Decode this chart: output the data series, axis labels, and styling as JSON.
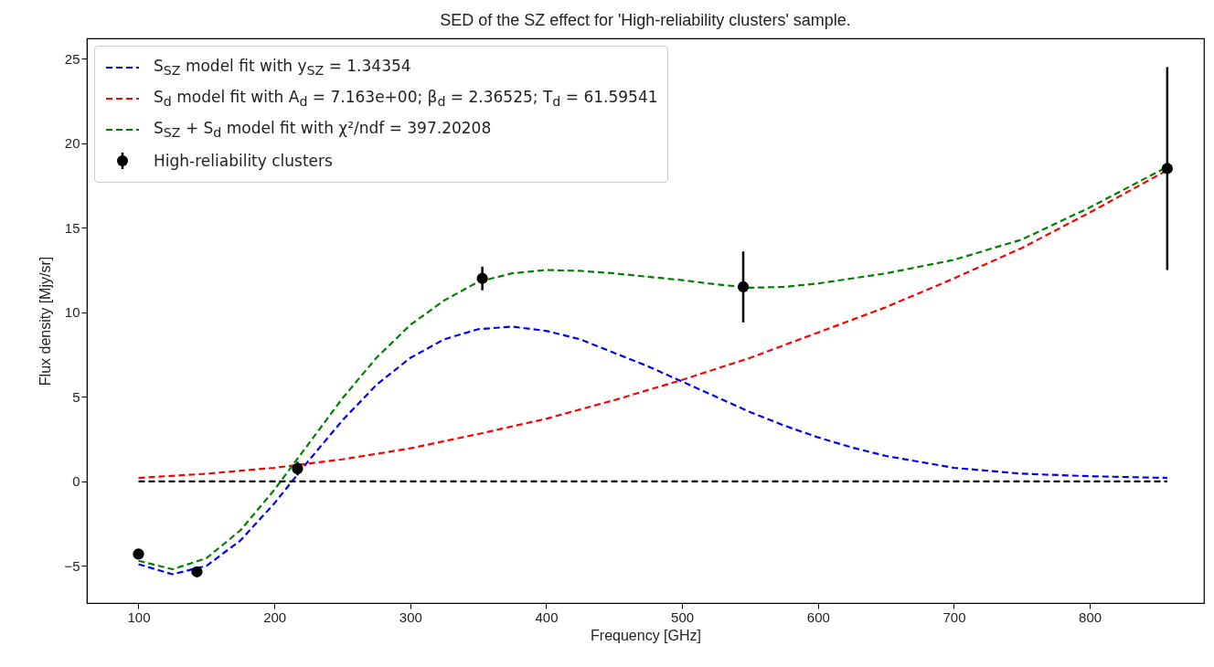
{
  "chart_data": {
    "type": "line",
    "title": "SED of the SZ effect for 'High-reliability clusters' sample.",
    "xlabel": "Frequency [GHz]",
    "ylabel": "Flux density [Mjy/sr]",
    "xlim": [
      62,
      884
    ],
    "ylim": [
      -7.2,
      26.2
    ],
    "xticks": [
      100,
      200,
      300,
      400,
      500,
      600,
      700,
      800
    ],
    "yticks": [
      -5,
      0,
      5,
      10,
      15,
      20,
      25
    ],
    "legend": "top left",
    "series": [
      {
        "name": "S$_{SZ}$ model fit with y$_{SZ}$ = 1.34354",
        "color": "#0000ff",
        "line_style": "dashed",
        "marker": "none",
        "x": [
          100,
          125,
          150,
          175,
          200,
          225,
          250,
          275,
          300,
          325,
          350,
          375,
          400,
          425,
          450,
          475,
          500,
          525,
          550,
          575,
          600,
          625,
          650,
          700,
          750,
          800,
          857
        ],
        "values": [
          -4.9,
          -5.5,
          -5.0,
          -3.5,
          -1.3,
          1.2,
          3.6,
          5.7,
          7.3,
          8.4,
          9.0,
          9.15,
          8.9,
          8.4,
          7.6,
          6.8,
          5.9,
          5.0,
          4.1,
          3.3,
          2.6,
          2.0,
          1.5,
          0.8,
          0.45,
          0.3,
          0.2
        ]
      },
      {
        "name": "S$_{d}$ model fit with A$_{d}$ = 7.163e+00; β$_{d}$ = 2.36525; T$_{d}$ = 61.59541",
        "color": "#ff0000",
        "line_style": "dashed",
        "marker": "none",
        "x": [
          100,
          150,
          200,
          250,
          300,
          350,
          400,
          450,
          500,
          550,
          600,
          650,
          700,
          750,
          800,
          857
        ],
        "values": [
          0.2,
          0.45,
          0.8,
          1.3,
          1.95,
          2.8,
          3.7,
          4.8,
          6.0,
          7.3,
          8.8,
          10.3,
          12.0,
          13.8,
          15.9,
          18.4
        ]
      },
      {
        "name": "S$_{SZ}$ + S$_{d}$ model fit with χ²/ndf = 397.20208",
        "color": "#008000",
        "line_style": "dashed",
        "marker": "none",
        "x": [
          100,
          125,
          150,
          175,
          200,
          225,
          250,
          275,
          300,
          325,
          350,
          375,
          400,
          425,
          450,
          475,
          500,
          525,
          550,
          575,
          600,
          625,
          650,
          700,
          750,
          800,
          857
        ],
        "values": [
          -4.7,
          -5.2,
          -4.55,
          -2.9,
          -0.5,
          2.2,
          4.9,
          7.3,
          9.25,
          10.7,
          11.8,
          12.3,
          12.5,
          12.45,
          12.3,
          12.1,
          11.9,
          11.65,
          11.45,
          11.5,
          11.7,
          12.0,
          12.3,
          13.1,
          14.3,
          16.2,
          18.6
        ]
      },
      {
        "color": "#000000",
        "line_style": "dashed",
        "marker": "none",
        "x": [
          100,
          857
        ],
        "values": [
          0,
          0
        ]
      },
      {
        "name": "High-reliability clusters",
        "type": "scatter",
        "color": "#000000",
        "marker": "circle",
        "x": [
          100,
          143,
          217,
          353,
          545,
          857
        ],
        "values": [
          -4.3,
          -5.35,
          0.75,
          12.0,
          11.5,
          18.5
        ],
        "errors": [
          0.1,
          0.1,
          0.4,
          0.7,
          2.1,
          6.0
        ]
      }
    ]
  }
}
